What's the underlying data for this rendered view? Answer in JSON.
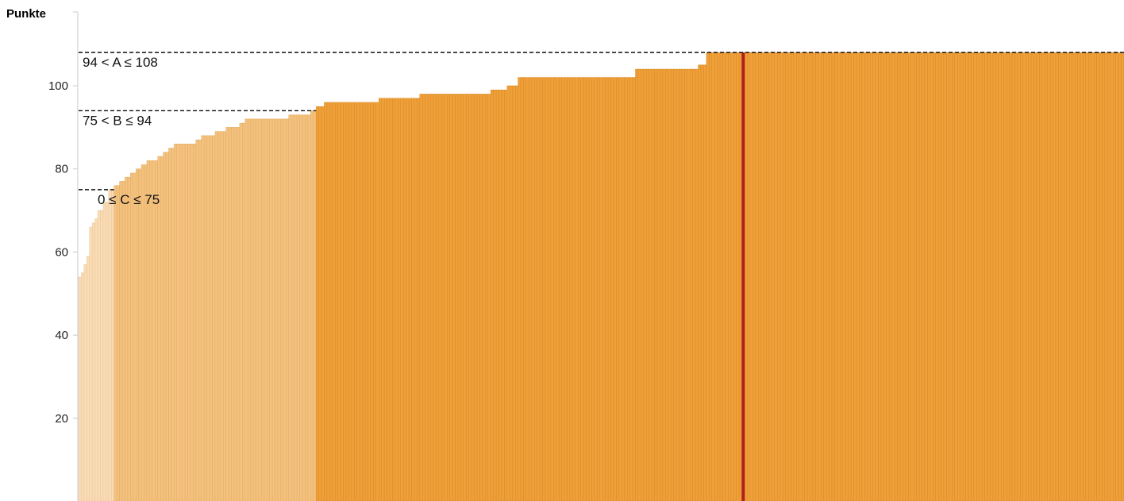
{
  "chart_data": {
    "type": "bar",
    "title": "",
    "xlabel": "",
    "ylabel": "Punkte",
    "ylim": [
      0,
      108
    ],
    "yticks": [
      20,
      40,
      60,
      80,
      100
    ],
    "grid": false,
    "legend": "none",
    "runs": [
      {
        "value": 54,
        "count": 1
      },
      {
        "value": 55,
        "count": 1
      },
      {
        "value": 57,
        "count": 1
      },
      {
        "value": 59,
        "count": 1
      },
      {
        "value": 66,
        "count": 1
      },
      {
        "value": 67,
        "count": 1
      },
      {
        "value": 68,
        "count": 1
      },
      {
        "value": 70,
        "count": 2
      },
      {
        "value": 72,
        "count": 2
      },
      {
        "value": 75,
        "count": 2
      },
      {
        "value": 76,
        "count": 2
      },
      {
        "value": 77,
        "count": 2
      },
      {
        "value": 78,
        "count": 2
      },
      {
        "value": 79,
        "count": 2
      },
      {
        "value": 80,
        "count": 2
      },
      {
        "value": 81,
        "count": 2
      },
      {
        "value": 82,
        "count": 4
      },
      {
        "value": 83,
        "count": 2
      },
      {
        "value": 84,
        "count": 2
      },
      {
        "value": 85,
        "count": 2
      },
      {
        "value": 86,
        "count": 8
      },
      {
        "value": 87,
        "count": 2
      },
      {
        "value": 88,
        "count": 5
      },
      {
        "value": 89,
        "count": 4
      },
      {
        "value": 90,
        "count": 5
      },
      {
        "value": 91,
        "count": 2
      },
      {
        "value": 92,
        "count": 16
      },
      {
        "value": 93,
        "count": 8
      },
      {
        "value": 94,
        "count": 2
      },
      {
        "value": 95,
        "count": 3
      },
      {
        "value": 96,
        "count": 20
      },
      {
        "value": 97,
        "count": 15
      },
      {
        "value": 98,
        "count": 26
      },
      {
        "value": 99,
        "count": 6
      },
      {
        "value": 100,
        "count": 4
      },
      {
        "value": 102,
        "count": 43
      },
      {
        "value": 104,
        "count": 23
      },
      {
        "value": 105,
        "count": 3
      },
      {
        "value": 108,
        "count": 153
      }
    ],
    "grades": [
      {
        "label": "0 ≤ C ≤ 75",
        "min": 0,
        "max": 75,
        "color": "#f9dcb5",
        "edge": "#e8c393"
      },
      {
        "label": "75 < B ≤ 94",
        "min": 75,
        "max": 94,
        "color": "#f4c27f",
        "edge": "#dfa85e"
      },
      {
        "label": "94 < A ≤ 108",
        "min": 94,
        "max": 108,
        "color": "#f0a03a",
        "edge": "#d6861d"
      }
    ],
    "thresholds": [
      75,
      94,
      108
    ],
    "highlight": {
      "index": 243,
      "value": 108,
      "color": "#b0201a"
    }
  }
}
